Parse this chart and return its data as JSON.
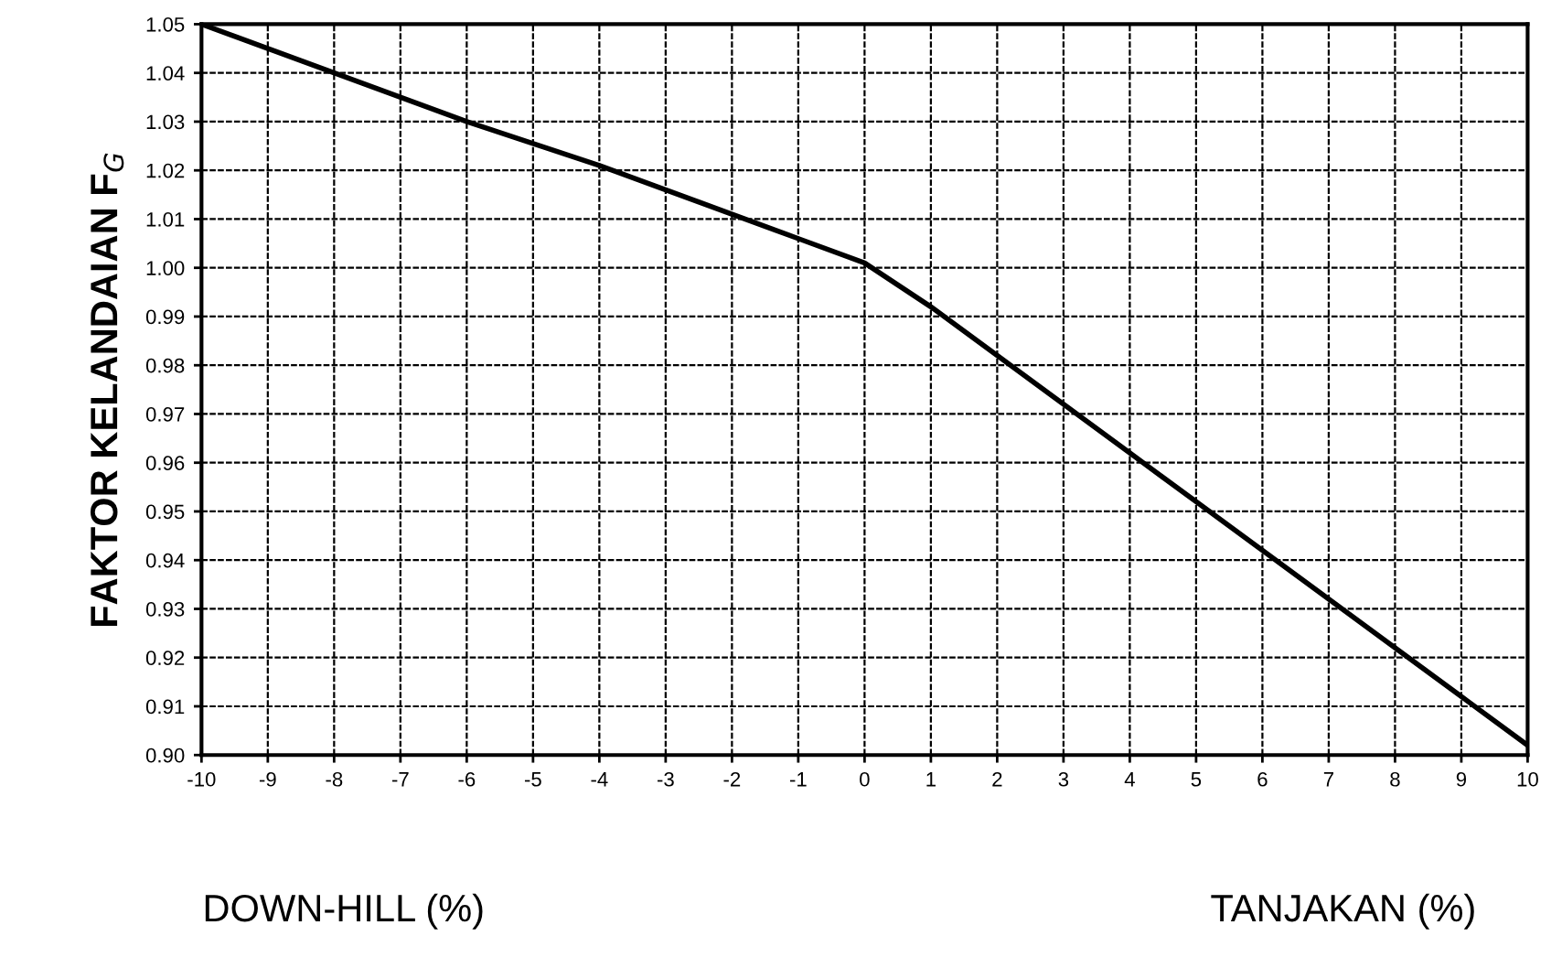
{
  "chart_data": {
    "type": "line",
    "xlabel": "DOWN-HILL (%)",
    "ylabel": "FAKTOR KELANDAIAN F$_{G}$",
    "annotations": [
      "TANJAKAN (%)"
    ],
    "x": [
      -10,
      -8,
      -6,
      -4,
      -2,
      -1,
      0,
      1,
      2,
      3,
      4,
      5,
      6,
      7,
      8,
      9,
      10
    ],
    "series": [
      {
        "color": "#000000",
        "values": [
          1.05,
          1.04,
          1.03,
          1.021,
          1.011,
          1.006,
          1.001,
          0.992,
          0.982,
          0.972,
          0.962,
          0.952,
          0.942,
          0.932,
          0.922,
          0.912,
          0.902
        ]
      }
    ],
    "xlim": [
      -10,
      10
    ],
    "ylim": [
      0.9,
      1.05
    ],
    "xticks": [
      -10,
      -9,
      -8,
      -7,
      -6,
      -5,
      -4,
      -3,
      -2,
      -1,
      0,
      1,
      2,
      3,
      4,
      5,
      6,
      7,
      8,
      9,
      10
    ],
    "yticks": [
      {
        "value": 0.9,
        "label": "0.90"
      },
      {
        "value": 0.91,
        "label": "0.91"
      },
      {
        "value": 0.92,
        "label": "0.92"
      },
      {
        "value": 0.93,
        "label": "0.93"
      },
      {
        "value": 0.94,
        "label": "0.94"
      },
      {
        "value": 0.95,
        "label": "0.95"
      },
      {
        "value": 0.96,
        "label": "0.96"
      },
      {
        "value": 0.97,
        "label": "0.97"
      },
      {
        "value": 0.98,
        "label": "0.98"
      },
      {
        "value": 0.99,
        "label": "0.99"
      },
      {
        "value": 1.0,
        "label": "1.00"
      },
      {
        "value": 1.01,
        "label": "1.01"
      },
      {
        "value": 1.02,
        "label": "1.02"
      },
      {
        "value": 1.03,
        "label": "1.03"
      },
      {
        "value": 1.04,
        "label": "1.04"
      },
      {
        "value": 1.05,
        "label": "1.05"
      }
    ],
    "grid": true,
    "marker": "none",
    "line_style": "solid"
  }
}
